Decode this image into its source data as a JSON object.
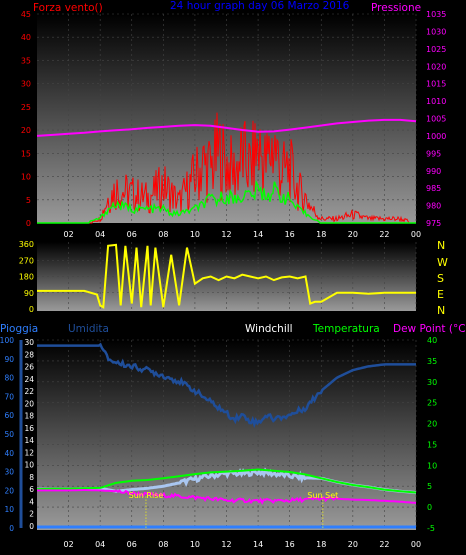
{
  "header": {
    "left_label": "Forza vento()",
    "title": "24 hour graph day  06 Marzo 2016",
    "right_label": "Pressione"
  },
  "colors": {
    "red": "#ff0000",
    "blue": "#0000ff",
    "magenta": "#ff00ff",
    "green": "#00ff00",
    "yellow": "#ffff00",
    "white": "#ffffff",
    "navy": "#1f4e9a",
    "lightblue": "#a9c6f0",
    "rain": "#2f7fff"
  },
  "time_axis_labels": [
    "02",
    "04",
    "06",
    "08",
    "10",
    "12",
    "14",
    "16",
    "18",
    "20",
    "22",
    "00"
  ],
  "chart_data": [
    {
      "type": "line",
      "title": "24 hour graph day  06 Marzo 2016",
      "left_axis_label": "Forza vento()",
      "right_axis_label": "Pressione",
      "left_ticks": [
        "45",
        "40",
        "35",
        "30",
        "25",
        "20",
        "15",
        "10",
        "5",
        "0"
      ],
      "right_ticks": [
        "1035",
        "1030",
        "1025",
        "1020",
        "1015",
        "1010",
        "1005",
        "1000",
        "995",
        "990",
        "985",
        "980",
        "975"
      ],
      "x_tick_labels": [
        "02",
        "04",
        "06",
        "08",
        "10",
        "12",
        "14",
        "16",
        "18",
        "20",
        "22",
        "00"
      ],
      "ylim_left": [
        0,
        45
      ],
      "ylim_right": [
        975,
        1035
      ],
      "series": [
        {
          "name": "Pressione",
          "axis": "right",
          "color": "#ff00ff",
          "x": [
            0,
            1,
            2,
            3,
            4,
            5,
            6,
            7,
            8,
            9,
            10,
            11,
            12,
            13,
            14,
            15,
            16,
            17,
            18,
            19,
            20,
            21,
            22,
            23,
            24
          ],
          "values": [
            1000,
            1000.3,
            1000.6,
            1000.9,
            1001.3,
            1001.6,
            1001.9,
            1002.3,
            1002.6,
            1002.9,
            1003.1,
            1002.9,
            1002.3,
            1001.7,
            1001.2,
            1001.3,
            1001.8,
            1002.4,
            1003,
            1003.6,
            1004,
            1004.4,
            1004.6,
            1004.6,
            1004.2
          ]
        },
        {
          "color": "#ff0000",
          "axis": "left",
          "x": [
            0,
            1,
            2,
            3,
            4,
            4.5,
            5,
            6,
            7,
            8,
            8.5,
            9,
            10,
            10.5,
            11,
            11.5,
            12,
            12.5,
            13,
            13.5,
            14,
            14.5,
            15,
            15.5,
            16,
            16.5,
            17,
            17.5,
            18,
            19,
            20,
            21,
            22,
            23,
            24
          ],
          "values": [
            0,
            0,
            0,
            0,
            1,
            6,
            8,
            7,
            6,
            9,
            7,
            5,
            11,
            14,
            13,
            17,
            14,
            12,
            16,
            13,
            18,
            14,
            19,
            12,
            13,
            8,
            6,
            3,
            1,
            1,
            2,
            1,
            1,
            1,
            0
          ]
        },
        {
          "color": "#00ff00",
          "axis": "left",
          "x": [
            0,
            1,
            2,
            3,
            4,
            4.5,
            5,
            6,
            7,
            8,
            8.5,
            9,
            10,
            10.5,
            11,
            11.5,
            12,
            12.5,
            13,
            13.5,
            14,
            14.5,
            15,
            15.5,
            16,
            16.5,
            17,
            17.5,
            18,
            19,
            20,
            21,
            22,
            23,
            24
          ],
          "values": [
            0,
            0,
            0,
            0,
            1,
            3,
            4,
            3,
            3,
            3,
            2,
            2,
            3,
            4,
            5,
            5,
            6,
            5,
            6,
            6,
            7,
            6,
            7,
            6,
            5,
            3,
            2,
            1,
            0,
            0,
            0,
            0,
            0,
            0,
            0
          ]
        }
      ]
    },
    {
      "type": "line",
      "right_labels": [
        "N",
        "W",
        "S",
        "E",
        "N"
      ],
      "left_ticks": [
        "360",
        "270",
        "180",
        "90",
        "0"
      ],
      "ylim": [
        0,
        360
      ],
      "series": [
        {
          "color": "#ffff00",
          "x": [
            0,
            1,
            2,
            3,
            3.8,
            4,
            4.2,
            4.5,
            5,
            5.3,
            5.6,
            6,
            6.3,
            6.6,
            7,
            7.2,
            7.5,
            8,
            8.5,
            9,
            9.5,
            10,
            10.5,
            11,
            11.5,
            12,
            12.5,
            13,
            13.5,
            14,
            14.5,
            15,
            15.5,
            16,
            16.5,
            17,
            17.3,
            17.6,
            18,
            19,
            20,
            21,
            22,
            23,
            24
          ],
          "values": [
            100,
            100,
            100,
            100,
            80,
            20,
            10,
            350,
            355,
            20,
            350,
            30,
            340,
            10,
            350,
            20,
            340,
            10,
            300,
            20,
            340,
            140,
            170,
            180,
            160,
            180,
            170,
            190,
            180,
            170,
            180,
            160,
            175,
            180,
            170,
            180,
            30,
            40,
            40,
            90,
            90,
            85,
            90,
            90,
            90
          ]
        }
      ]
    },
    {
      "type": "line",
      "legend": [
        "Pioggia",
        "Umidita",
        "Windchill",
        "Temperatura",
        "Dew Point (°C)"
      ],
      "left_ticks_rain": [
        "100",
        "90",
        "80",
        "70",
        "60",
        "50",
        "40",
        "30",
        "20",
        "10",
        "0"
      ],
      "left_ticks_hum": [
        "30",
        "28",
        "26",
        "24",
        "22",
        "20",
        "18",
        "16",
        "14",
        "12",
        "10",
        "8",
        "6",
        "4",
        "2",
        "0"
      ],
      "right_ticks": [
        "40",
        "35",
        "30",
        "25",
        "20",
        "15",
        "10",
        "5",
        "0",
        "-5"
      ],
      "ylim_right": [
        -5,
        40
      ],
      "sun_rise_label": "Sun Rise",
      "sun_set_label": "Sun Set",
      "sun_rise_hour": 6.9,
      "sun_set_hour": 18.1,
      "series": [
        {
          "name": "Umidita",
          "color": "#1f4e9a",
          "axis": "humidity_pct",
          "x": [
            0,
            1,
            2,
            3,
            4,
            4.5,
            5,
            6,
            7,
            8,
            9,
            10,
            11,
            12,
            12.5,
            13,
            13.5,
            14,
            14.5,
            15,
            15.5,
            16,
            17,
            18,
            19,
            20,
            21,
            22,
            23,
            24
          ],
          "values": [
            97,
            97,
            97,
            97,
            97,
            90,
            88,
            86,
            84,
            81,
            78,
            73,
            67,
            61,
            58,
            60,
            57,
            56,
            60,
            58,
            59,
            60,
            64,
            73,
            80,
            84,
            86,
            87,
            87,
            87
          ]
        },
        {
          "name": "Temperatura",
          "color": "#00ff00",
          "axis": "right",
          "x": [
            0,
            1,
            2,
            3,
            4,
            5,
            6,
            7,
            8,
            9,
            10,
            11,
            12,
            13,
            14,
            15,
            16,
            17,
            18,
            19,
            20,
            21,
            22,
            23,
            24
          ],
          "values": [
            4.3,
            4.4,
            4.4,
            4.5,
            4.6,
            5.8,
            6.3,
            6.5,
            6.9,
            7.4,
            7.9,
            8.3,
            8.5,
            8.7,
            9,
            8.7,
            8.4,
            7.8,
            6.9,
            6,
            5.3,
            4.8,
            4.2,
            3.8,
            3.5
          ]
        },
        {
          "name": "Windchill",
          "color": "#a9c6f0",
          "axis": "right",
          "x": [
            0,
            1,
            2,
            3,
            4,
            5,
            6,
            7,
            8,
            9,
            10,
            11,
            12,
            13,
            14,
            15,
            16,
            17,
            18,
            19,
            20,
            21,
            22,
            23,
            24
          ],
          "values": [
            4.3,
            4.3,
            4.3,
            4.4,
            4.5,
            3.8,
            4.2,
            4.5,
            5,
            5.8,
            6.7,
            7.5,
            8.1,
            8,
            8.4,
            8,
            7.5,
            7,
            6.9,
            6,
            5.3,
            4.8,
            4.2,
            3.8,
            3.5
          ]
        },
        {
          "name": "Dew Point (°C)",
          "color": "#ff00ff",
          "axis": "right",
          "x": [
            0,
            1,
            2,
            3,
            4,
            5,
            6,
            7,
            8,
            9,
            10,
            11,
            12,
            13,
            14,
            15,
            16,
            17,
            18,
            19,
            20,
            21,
            22,
            23,
            24
          ],
          "values": [
            4,
            4,
            4,
            4.1,
            4,
            3.8,
            3.3,
            3,
            2.8,
            2.6,
            2.3,
            2,
            1.6,
            1.6,
            1.5,
            1.5,
            1.6,
            1.8,
            2,
            2,
            1.8,
            1.7,
            1.5,
            1.3,
            1
          ]
        },
        {
          "name": "Pioggia",
          "color": "#2f7fff",
          "axis": "rain",
          "x": [
            0,
            24
          ],
          "values": [
            0,
            0
          ]
        }
      ]
    }
  ]
}
